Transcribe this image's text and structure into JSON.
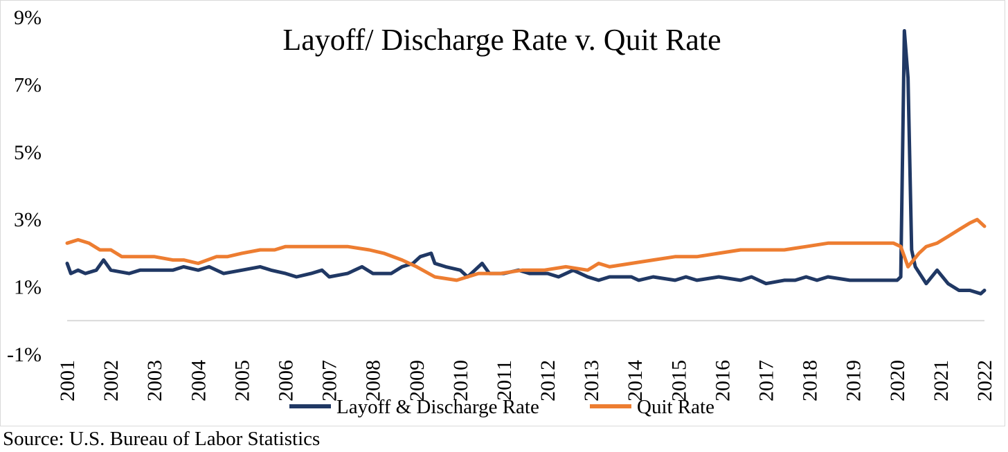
{
  "chart_data": {
    "type": "line",
    "title": "Layoff/ Discharge Rate v. Quit Rate",
    "xlabel": "",
    "ylabel": "",
    "ylim": [
      -1,
      9
    ],
    "y_ticks": [
      "-1%",
      "1%",
      "3%",
      "5%",
      "7%",
      "9%"
    ],
    "y_tick_values": [
      -1,
      1,
      3,
      5,
      7,
      9
    ],
    "x_ticks": [
      "2001",
      "2002",
      "2003",
      "2004",
      "2005",
      "2006",
      "2007",
      "2008",
      "2009",
      "2010",
      "2011",
      "2012",
      "2013",
      "2014",
      "2015",
      "2016",
      "2017",
      "2018",
      "2019",
      "2020",
      "2021",
      "2022"
    ],
    "x_range": [
      "2001-01",
      "2022-01"
    ],
    "grid": false,
    "legend_position": "bottom",
    "series": [
      {
        "name": "Layoff & Discharge Rate",
        "color": "#203864",
        "points": [
          [
            "2001-01",
            1.7
          ],
          [
            "2001-02",
            1.4
          ],
          [
            "2001-04",
            1.5
          ],
          [
            "2001-06",
            1.4
          ],
          [
            "2001-09",
            1.5
          ],
          [
            "2001-11",
            1.8
          ],
          [
            "2002-01",
            1.5
          ],
          [
            "2002-06",
            1.4
          ],
          [
            "2002-09",
            1.5
          ],
          [
            "2003-01",
            1.5
          ],
          [
            "2003-06",
            1.5
          ],
          [
            "2003-09",
            1.6
          ],
          [
            "2004-01",
            1.5
          ],
          [
            "2004-04",
            1.6
          ],
          [
            "2004-08",
            1.4
          ],
          [
            "2005-01",
            1.5
          ],
          [
            "2005-06",
            1.6
          ],
          [
            "2005-09",
            1.5
          ],
          [
            "2006-01",
            1.4
          ],
          [
            "2006-04",
            1.3
          ],
          [
            "2006-08",
            1.4
          ],
          [
            "2006-11",
            1.5
          ],
          [
            "2007-01",
            1.3
          ],
          [
            "2007-06",
            1.4
          ],
          [
            "2007-10",
            1.6
          ],
          [
            "2008-01",
            1.4
          ],
          [
            "2008-06",
            1.4
          ],
          [
            "2008-09",
            1.6
          ],
          [
            "2008-12",
            1.7
          ],
          [
            "2009-02",
            1.9
          ],
          [
            "2009-05",
            2.0
          ],
          [
            "2009-06",
            1.7
          ],
          [
            "2009-09",
            1.6
          ],
          [
            "2010-01",
            1.5
          ],
          [
            "2010-03",
            1.3
          ],
          [
            "2010-05",
            1.5
          ],
          [
            "2010-07",
            1.7
          ],
          [
            "2010-09",
            1.4
          ],
          [
            "2011-01",
            1.4
          ],
          [
            "2011-05",
            1.5
          ],
          [
            "2011-08",
            1.4
          ],
          [
            "2012-01",
            1.4
          ],
          [
            "2012-04",
            1.3
          ],
          [
            "2012-08",
            1.5
          ],
          [
            "2012-12",
            1.3
          ],
          [
            "2013-03",
            1.2
          ],
          [
            "2013-06",
            1.3
          ],
          [
            "2013-12",
            1.3
          ],
          [
            "2014-02",
            1.2
          ],
          [
            "2014-06",
            1.3
          ],
          [
            "2014-12",
            1.2
          ],
          [
            "2015-03",
            1.3
          ],
          [
            "2015-06",
            1.2
          ],
          [
            "2015-12",
            1.3
          ],
          [
            "2016-06",
            1.2
          ],
          [
            "2016-09",
            1.3
          ],
          [
            "2017-01",
            1.1
          ],
          [
            "2017-06",
            1.2
          ],
          [
            "2017-09",
            1.2
          ],
          [
            "2017-12",
            1.3
          ],
          [
            "2018-03",
            1.2
          ],
          [
            "2018-06",
            1.3
          ],
          [
            "2018-12",
            1.2
          ],
          [
            "2019-05",
            1.2
          ],
          [
            "2019-09",
            1.2
          ],
          [
            "2020-01",
            1.2
          ],
          [
            "2020-02",
            1.3
          ],
          [
            "2020-03",
            8.6
          ],
          [
            "2020-04",
            7.2
          ],
          [
            "2020-05",
            2.1
          ],
          [
            "2020-06",
            1.6
          ],
          [
            "2020-09",
            1.1
          ],
          [
            "2020-12",
            1.5
          ],
          [
            "2021-03",
            1.1
          ],
          [
            "2021-06",
            0.9
          ],
          [
            "2021-09",
            0.9
          ],
          [
            "2021-12",
            0.8
          ],
          [
            "2022-01",
            0.9
          ]
        ]
      },
      {
        "name": "Quit Rate",
        "color": "#ED7D31",
        "points": [
          [
            "2001-01",
            2.3
          ],
          [
            "2001-04",
            2.4
          ],
          [
            "2001-07",
            2.3
          ],
          [
            "2001-10",
            2.1
          ],
          [
            "2002-01",
            2.1
          ],
          [
            "2002-04",
            1.9
          ],
          [
            "2002-09",
            1.9
          ],
          [
            "2003-01",
            1.9
          ],
          [
            "2003-06",
            1.8
          ],
          [
            "2003-09",
            1.8
          ],
          [
            "2004-01",
            1.7
          ],
          [
            "2004-06",
            1.9
          ],
          [
            "2004-09",
            1.9
          ],
          [
            "2005-01",
            2.0
          ],
          [
            "2005-06",
            2.1
          ],
          [
            "2005-10",
            2.1
          ],
          [
            "2006-01",
            2.2
          ],
          [
            "2006-06",
            2.2
          ],
          [
            "2007-01",
            2.2
          ],
          [
            "2007-06",
            2.2
          ],
          [
            "2007-12",
            2.1
          ],
          [
            "2008-04",
            2.0
          ],
          [
            "2008-09",
            1.8
          ],
          [
            "2009-01",
            1.6
          ],
          [
            "2009-06",
            1.3
          ],
          [
            "2009-12",
            1.2
          ],
          [
            "2010-06",
            1.4
          ],
          [
            "2010-12",
            1.4
          ],
          [
            "2011-06",
            1.5
          ],
          [
            "2011-12",
            1.5
          ],
          [
            "2012-06",
            1.6
          ],
          [
            "2012-12",
            1.5
          ],
          [
            "2013-03",
            1.7
          ],
          [
            "2013-06",
            1.6
          ],
          [
            "2013-12",
            1.7
          ],
          [
            "2014-06",
            1.8
          ],
          [
            "2014-12",
            1.9
          ],
          [
            "2015-06",
            1.9
          ],
          [
            "2015-12",
            2.0
          ],
          [
            "2016-06",
            2.1
          ],
          [
            "2016-12",
            2.1
          ],
          [
            "2017-06",
            2.1
          ],
          [
            "2017-12",
            2.2
          ],
          [
            "2018-06",
            2.3
          ],
          [
            "2018-12",
            2.3
          ],
          [
            "2019-06",
            2.3
          ],
          [
            "2019-09",
            2.3
          ],
          [
            "2019-12",
            2.3
          ],
          [
            "2020-02",
            2.2
          ],
          [
            "2020-04",
            1.6
          ],
          [
            "2020-07",
            2.0
          ],
          [
            "2020-09",
            2.2
          ],
          [
            "2020-12",
            2.3
          ],
          [
            "2021-03",
            2.5
          ],
          [
            "2021-06",
            2.7
          ],
          [
            "2021-09",
            2.9
          ],
          [
            "2021-11",
            3.0
          ],
          [
            "2022-01",
            2.8
          ]
        ]
      }
    ]
  },
  "source": "Source: U.S. Bureau of Labor Statistics"
}
